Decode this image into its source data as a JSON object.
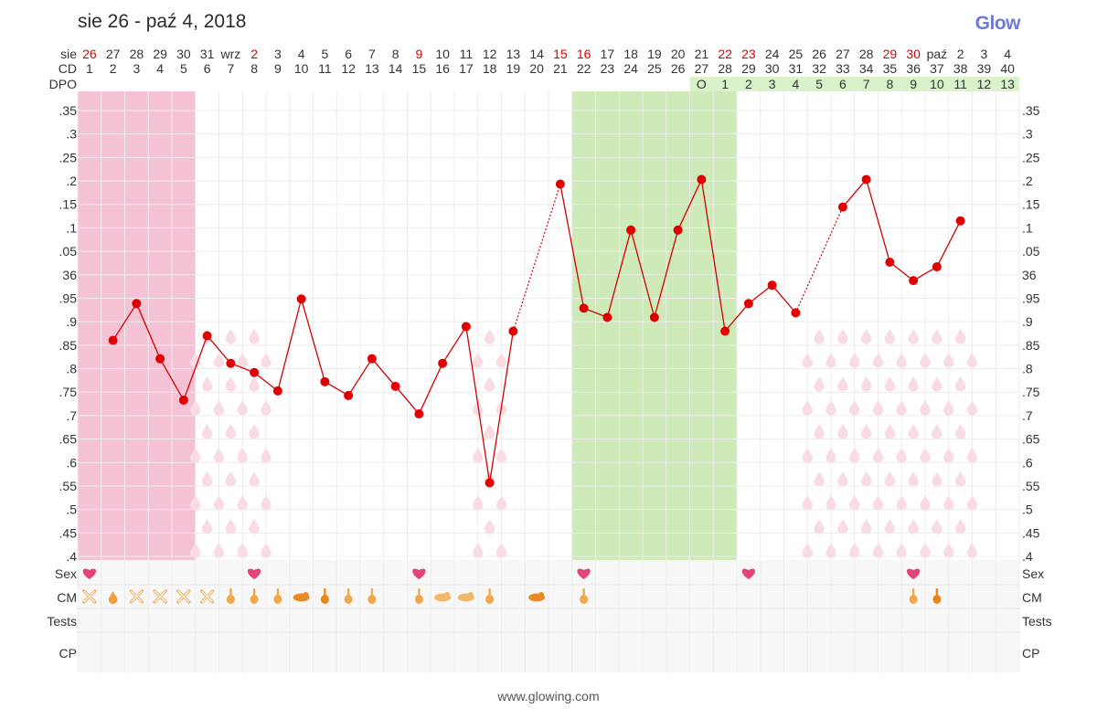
{
  "header": {
    "title": "sie 26 - paź 4, 2018",
    "brand": "Glow"
  },
  "footer": {
    "url": "www.glowing.com"
  },
  "colors": {
    "red": "#e00000",
    "line": "#d40000",
    "period": "#f4c2d4",
    "fertile": "#cdeab8",
    "dpo": "#d9f2c9",
    "drop": "#f9dbe4",
    "heart": "#e2457a",
    "cm": "#f0a03c",
    "grid": "#ececec"
  },
  "row_labels": {
    "date": "sie",
    "cd": "CD",
    "dpo": "DPO",
    "sex": "Sex",
    "cm": "CM",
    "tests": "Tests",
    "cp": "CP"
  },
  "chart_data": {
    "type": "line",
    "title": "",
    "xlabel": "",
    "ylabel": "",
    "grid": true,
    "ylim": [
      0.4,
      0.37
    ],
    "y_ticks": [
      ".35",
      ".3",
      ".25",
      ".2",
      ".15",
      ".1",
      ".05",
      "36",
      ".95",
      ".9",
      ".85",
      ".8",
      ".75",
      ".7",
      ".65",
      ".6",
      ".55",
      ".5",
      ".45",
      ".4"
    ],
    "dates": [
      "26",
      "27",
      "28",
      "29",
      "30",
      "31",
      "wrz",
      "2",
      "3",
      "4",
      "5",
      "6",
      "7",
      "8",
      "9",
      "10",
      "11",
      "12",
      "13",
      "14",
      "15",
      "16",
      "17",
      "18",
      "19",
      "20",
      "21",
      "22",
      "23",
      "24",
      "25",
      "26",
      "27",
      "28",
      "29",
      "30",
      "paź",
      "2",
      "3",
      "4"
    ],
    "weekend_red": [
      0,
      7,
      14,
      20,
      21,
      27,
      28,
      34,
      35
    ],
    "cycle_days": [
      "1",
      "2",
      "3",
      "4",
      "5",
      "6",
      "7",
      "8",
      "9",
      "10",
      "11",
      "12",
      "13",
      "14",
      "15",
      "16",
      "17",
      "18",
      "19",
      "20",
      "21",
      "22",
      "23",
      "24",
      "25",
      "26",
      "27",
      "28",
      "29",
      "30",
      "31",
      "32",
      "33",
      "34",
      "35",
      "36",
      "37",
      "38",
      "39",
      "40"
    ],
    "dpo": [
      "",
      "",
      "",
      "",
      "",
      "",
      "",
      "",
      "",
      "",
      "",
      "",
      "",
      "",
      "",
      "",
      "",
      "",
      "",
      "",
      "",
      "",
      "",
      "",
      "",
      "",
      "O",
      "1",
      "2",
      "3",
      "4",
      "5",
      "6",
      "7",
      "8",
      "9",
      "10",
      "11",
      "12",
      "13"
    ],
    "temperature_series": {
      "name": "",
      "values": [
        null,
        35.87,
        35.95,
        35.83,
        35.74,
        35.88,
        35.82,
        35.8,
        35.76,
        35.96,
        35.78,
        35.75,
        35.83,
        35.77,
        35.71,
        35.82,
        35.9,
        35.56,
        35.89,
        null,
        36.21,
        35.94,
        35.92,
        36.11,
        35.92,
        36.11,
        36.22,
        35.89,
        35.95,
        35.99,
        35.93,
        null,
        36.16,
        36.22,
        36.04,
        36.0,
        36.03,
        36.13,
        null,
        null
      ]
    },
    "period_days": [
      0,
      1,
      2,
      3,
      4
    ],
    "fertile_window": [
      21,
      27
    ],
    "sex_days": [
      0,
      7,
      14,
      21,
      28,
      35
    ],
    "cm_days": [
      {
        "day": 0,
        "type": "dry"
      },
      {
        "day": 1,
        "type": "sticky"
      },
      {
        "day": 2,
        "type": "dry"
      },
      {
        "day": 3,
        "type": "dry"
      },
      {
        "day": 4,
        "type": "dry"
      },
      {
        "day": 5,
        "type": "dry"
      },
      {
        "day": 6,
        "type": "creamy"
      },
      {
        "day": 7,
        "type": "creamy"
      },
      {
        "day": 8,
        "type": "creamy"
      },
      {
        "day": 9,
        "type": "watery"
      },
      {
        "day": 10,
        "type": "eggwhite"
      },
      {
        "day": 11,
        "type": "creamy"
      },
      {
        "day": 12,
        "type": "creamy"
      },
      {
        "day": 14,
        "type": "creamy"
      },
      {
        "day": 15,
        "type": "watery-light"
      },
      {
        "day": 16,
        "type": "watery-light"
      },
      {
        "day": 17,
        "type": "creamy"
      },
      {
        "day": 19,
        "type": "watery"
      },
      {
        "day": 21,
        "type": "creamy"
      },
      {
        "day": 35,
        "type": "creamy"
      },
      {
        "day": 36,
        "type": "eggwhite"
      }
    ],
    "spotting_ranges": [
      [
        5,
        7,
        "full"
      ],
      [
        17,
        17,
        "partial"
      ],
      [
        31,
        37,
        "upper"
      ]
    ]
  }
}
